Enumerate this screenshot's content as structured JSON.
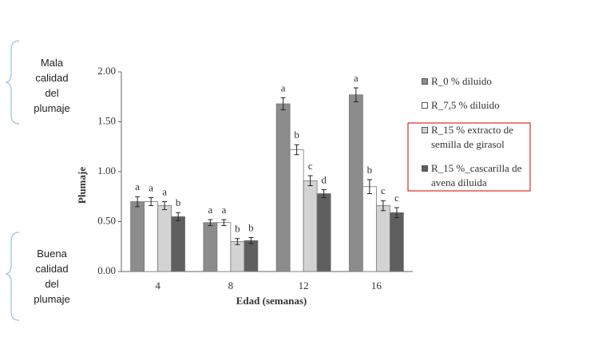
{
  "chart_data": {
    "type": "bar",
    "x_label": "Edad (semanas)",
    "y_label": "Plumaje",
    "categories": [
      "4",
      "8",
      "12",
      "16"
    ],
    "series": [
      {
        "name": "R_0 % diluido",
        "color": "#8c8c8c",
        "values": [
          0.7,
          0.49,
          1.68,
          1.77
        ],
        "errors": [
          0.05,
          0.03,
          0.06,
          0.07
        ],
        "letters": [
          "a",
          "a",
          "a",
          "a"
        ]
      },
      {
        "name": "R_7,5 % diluido",
        "color": "#ffffff",
        "values": [
          0.7,
          0.49,
          1.22,
          0.85
        ],
        "errors": [
          0.04,
          0.03,
          0.05,
          0.07
        ],
        "letters": [
          "a",
          "a",
          "b",
          "b"
        ]
      },
      {
        "name": "R_15 % extracto de semilla de girasol",
        "color": "#d3d3d3",
        "values": [
          0.66,
          0.3,
          0.91,
          0.66
        ],
        "errors": [
          0.04,
          0.03,
          0.05,
          0.05
        ],
        "letters": [
          "a",
          "b",
          "c",
          "c"
        ]
      },
      {
        "name": "R_15 %_cascarilla de avena diluida",
        "color": "#5f5f5f",
        "values": [
          0.55,
          0.31,
          0.78,
          0.59
        ],
        "errors": [
          0.04,
          0.03,
          0.04,
          0.05
        ],
        "letters": [
          "b",
          "b",
          "d",
          "c"
        ]
      }
    ],
    "ylim": [
      0,
      2
    ],
    "yticks": [
      {
        "value": 0,
        "label": "0.00"
      },
      {
        "value": 0.5,
        "label": "0.50"
      },
      {
        "value": 1,
        "label": "1.00"
      },
      {
        "value": 1.5,
        "label": "1.50"
      },
      {
        "value": 2,
        "label": "2.00"
      }
    ],
    "annotations": [
      "Mala calidad del plumaje",
      "Buena calidad del plumaje"
    ]
  }
}
